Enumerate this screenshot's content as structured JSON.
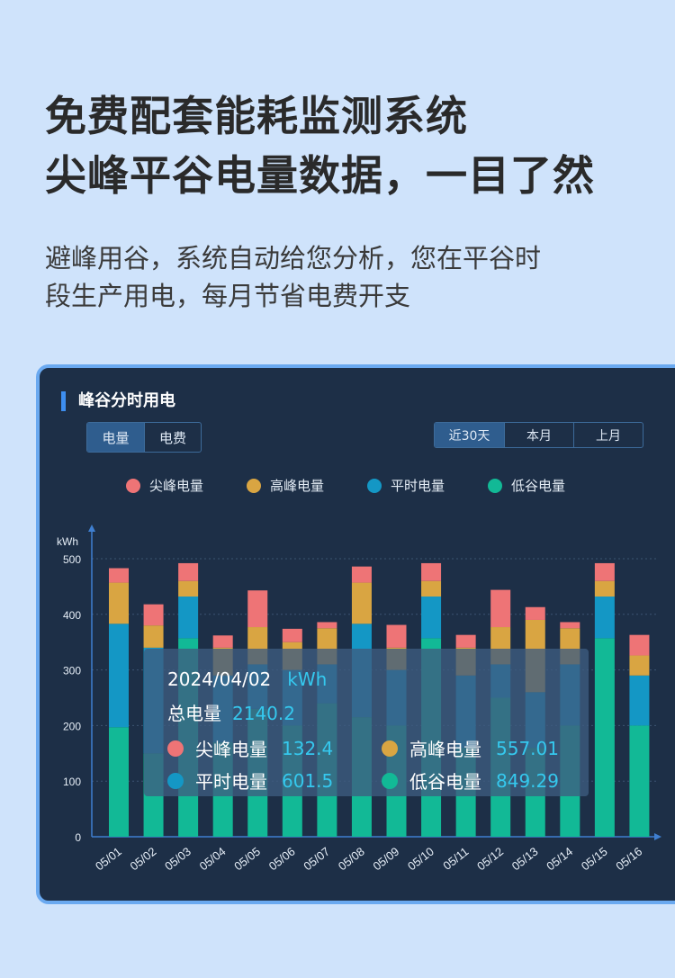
{
  "header": {
    "headline_line1": "免费配套能耗监测系统",
    "headline_line2": "尖峰平谷电量数据，一目了然",
    "subtitle_line1": "避峰用谷，系统自动给您分析，您在平谷时",
    "subtitle_line2": "段生产用电，每月节省电费开支"
  },
  "card": {
    "title": "峰谷分时用电",
    "metric_tabs": [
      {
        "label": "电量",
        "active": true
      },
      {
        "label": "电费",
        "active": false
      }
    ],
    "range_tabs": [
      {
        "label": "近30天",
        "active": true
      },
      {
        "label": "本月",
        "active": false
      },
      {
        "label": "上月",
        "active": false
      }
    ],
    "legend": [
      {
        "label": "尖峰电量",
        "color": "#ee7476"
      },
      {
        "label": "高峰电量",
        "color": "#d9a542"
      },
      {
        "label": "平时电量",
        "color": "#1497c5"
      },
      {
        "label": "低谷电量",
        "color": "#12b996"
      }
    ],
    "tooltip": {
      "date": "2024/04/02",
      "unit": "kWh",
      "total_label": "总电量",
      "total_value": "2140.2",
      "items": [
        {
          "label": "尖峰电量",
          "value": "132.4",
          "color": "#ee7476"
        },
        {
          "label": "高峰电量",
          "value": "557.01",
          "color": "#d9a542"
        },
        {
          "label": "平时电量",
          "value": "601.5",
          "color": "#1497c5"
        },
        {
          "label": "低谷电量",
          "value": "849.29",
          "color": "#12b996"
        }
      ]
    }
  },
  "chart_data": {
    "type": "bar",
    "stacked": true,
    "ylabel": "kWh",
    "ylim": [
      0,
      500
    ],
    "yticks": [
      0,
      100,
      200,
      300,
      400,
      500
    ],
    "categories": [
      "05/01",
      "05/02",
      "05/03",
      "05/04",
      "05/05",
      "05/06",
      "05/07",
      "05/08",
      "05/09",
      "05/10",
      "05/11",
      "05/12",
      "05/13",
      "05/14",
      "05/15",
      "05/16"
    ],
    "series": [
      {
        "name": "低谷电量",
        "color": "#12b996",
        "values": [
          197,
          150,
          357,
          170,
          230,
          200,
          240,
          215,
          200,
          357,
          160,
          250,
          160,
          200,
          357,
          200
        ]
      },
      {
        "name": "平时电量",
        "color": "#1497c5",
        "values": [
          186,
          190,
          75,
          120,
          80,
          100,
          70,
          168,
          100,
          75,
          130,
          60,
          100,
          110,
          75,
          90
        ]
      },
      {
        "name": "高峰电量",
        "color": "#d9a542",
        "values": [
          74,
          40,
          28,
          50,
          67,
          50,
          65,
          74,
          40,
          28,
          50,
          67,
          130,
          65,
          28,
          36
        ]
      },
      {
        "name": "尖峰电量",
        "color": "#ee7476",
        "values": [
          26,
          38,
          32,
          22,
          66,
          24,
          11,
          29,
          41,
          32,
          23,
          67,
          23,
          11,
          32,
          37
        ]
      }
    ]
  }
}
